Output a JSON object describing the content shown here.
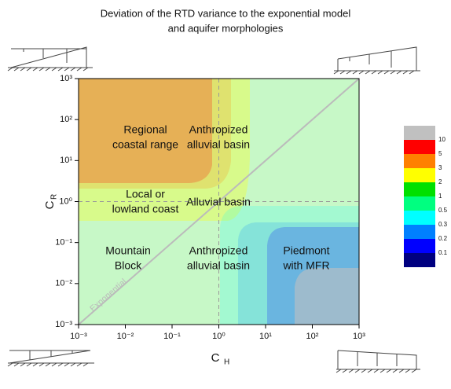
{
  "chart_data": {
    "type": "contour",
    "title": [
      "Deviation of the RTD variance to the exponential model",
      "and aquifer morphologies"
    ],
    "x_label": "C",
    "x_label_sub": "H",
    "y_label": "C",
    "y_label_sub": "R",
    "xscale": "log",
    "yscale": "log",
    "xlim": [
      0.001,
      1000
    ],
    "ylim": [
      0.001,
      1000
    ],
    "xticks": [
      {
        "value": 0.001,
        "label": "10⁻³"
      },
      {
        "value": 0.01,
        "label": "10⁻²"
      },
      {
        "value": 0.1,
        "label": "10⁻¹"
      },
      {
        "value": 1,
        "label": "10⁰"
      },
      {
        "value": 10,
        "label": "10¹"
      },
      {
        "value": 100,
        "label": "10²"
      },
      {
        "value": 1000,
        "label": "10³"
      }
    ],
    "yticks": [
      {
        "value": 0.001,
        "label": "10⁻³"
      },
      {
        "value": 0.01,
        "label": "10⁻²"
      },
      {
        "value": 0.1,
        "label": "10⁻¹"
      },
      {
        "value": 1,
        "label": "10⁰"
      },
      {
        "value": 10,
        "label": "10¹"
      },
      {
        "value": 100,
        "label": "10²"
      },
      {
        "value": 1000,
        "label": "10³"
      }
    ],
    "reference_lines": [
      1,
      1
    ],
    "diagonal_label": "Exponential",
    "annotations": [
      {
        "lines": [
          "Regional",
          "coastal range"
        ]
      },
      {
        "lines": [
          "Anthropized",
          "alluvial basin"
        ]
      },
      {
        "lines": [
          "Local or",
          "lowland coast"
        ]
      },
      {
        "lines": [
          "Alluvial basin"
        ]
      },
      {
        "lines": [
          "Mountain",
          "Block"
        ]
      },
      {
        "lines": [
          "Anthropized",
          "alluvial basin"
        ]
      },
      {
        "lines": [
          "Piedmont",
          "with MFR"
        ]
      }
    ],
    "colorbar": {
      "levels": [
        0.1,
        0.2,
        0.3,
        0.5,
        1,
        2,
        3,
        5,
        10
      ],
      "colors": [
        "#000080",
        "#0000ff",
        "#0080ff",
        "#00ffff",
        "#00ff80",
        "#00e000",
        "#ffff00",
        "#ff8000",
        "#ff0000",
        "#c0c0c0"
      ]
    }
  }
}
